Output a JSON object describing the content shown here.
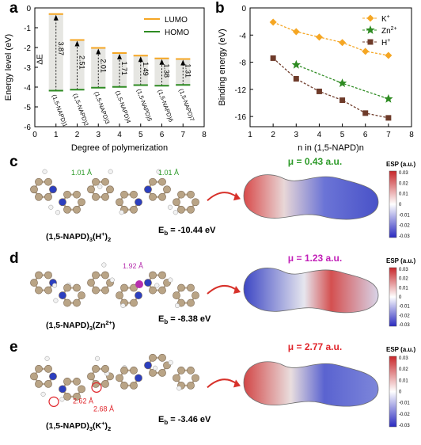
{
  "panels": {
    "a": "a",
    "b": "b",
    "c": "c",
    "d": "d",
    "e": "e"
  },
  "chart_data": [
    {
      "type": "bar",
      "panel": "a",
      "xlabel": "Degree of polymerization",
      "ylabel": "Energy level (eV)",
      "xlim": [
        0,
        8
      ],
      "ylim": [
        -6,
        0
      ],
      "xticks": [
        "0",
        "1",
        "2",
        "3",
        "4",
        "5",
        "6",
        "7",
        "8"
      ],
      "yticks": [
        "0",
        "-1",
        "-2",
        "-3",
        "-4",
        "-5",
        "-6"
      ],
      "categories": [
        "1",
        "2",
        "3",
        "4",
        "5",
        "6",
        "7"
      ],
      "series": [
        {
          "name": "LUMO",
          "color": "#f5a623",
          "values": [
            -0.31,
            -1.62,
            -2.02,
            -2.28,
            -2.41,
            -2.55,
            -2.58
          ]
        },
        {
          "name": "HOMO",
          "color": "#2e8b22",
          "values": [
            -4.18,
            -4.13,
            -4.03,
            -3.99,
            -3.9,
            -3.93,
            -3.89
          ]
        }
      ],
      "gap_labels": [
        "3.87",
        "2.51",
        "2.01",
        "1.71",
        "1.49",
        "1.38",
        "1.31"
      ],
      "bar_labels": [
        "(1,5-NAPD)1",
        "(1,5-NAPD)2",
        "(1,5-NAPD)3",
        "(1,5-NAPD)4",
        "(1,5-NAPD)5",
        "(1,5-NAPD)6",
        "(1,5-NAPD)7"
      ],
      "delta_label": "ΔE",
      "legend": "top-right"
    },
    {
      "type": "line",
      "panel": "b",
      "xlabel": "n in (1,5-NAPD)n",
      "ylabel": "Binding energy (eV)",
      "xlim": [
        1,
        8
      ],
      "ylim": [
        -17.5,
        0
      ],
      "xticks": [
        "1",
        "2",
        "3",
        "4",
        "5",
        "6",
        "7",
        "8"
      ],
      "yticks": [
        "0",
        "-4",
        "-8",
        "-12",
        "-16"
      ],
      "series": [
        {
          "name": "K+",
          "color": "#f5a623",
          "marker": "diamond",
          "x": [
            2,
            3,
            4,
            5,
            6,
            7
          ],
          "y": [
            -2.1,
            -3.5,
            -4.3,
            -5.1,
            -6.4,
            -7.0
          ]
        },
        {
          "name": "Zn2+",
          "color": "#2e8b22",
          "marker": "star",
          "x": [
            3,
            5,
            7
          ],
          "y": [
            -8.38,
            -11.1,
            -13.4
          ]
        },
        {
          "name": "H+",
          "color": "#6e3b2a",
          "marker": "square",
          "x": [
            2,
            3,
            4,
            5,
            6,
            7
          ],
          "y": [
            -7.4,
            -10.44,
            -12.3,
            -13.6,
            -15.5,
            -16.2
          ]
        }
      ],
      "legend": "top-right"
    }
  ],
  "structures": [
    {
      "name_main": "(1,5-NAPD)",
      "name_sub1": "3",
      "name_ion": "(H",
      "name_sup": "+",
      "name_close": ")",
      "name_sub2": "2",
      "eb_label": "E",
      "eb_sub": "b",
      "eb_value": " = -10.44 eV",
      "bond_labels": [
        "1.01 Å",
        "1.01 Å"
      ],
      "mu": "μ = 0.43 a.u.",
      "mu_color": "#2e9b2a",
      "esp_title": "ESP (a.u.)",
      "esp_ticks": [
        "0.03",
        "0.02",
        "0.01",
        "0",
        "-0.01",
        "-0.02",
        "-0.03"
      ]
    },
    {
      "name_main": "(1,5-NAPD)",
      "name_sub1": "3",
      "name_ion": "(Zn",
      "name_sup": "2+",
      "name_close": ")",
      "name_sub2": "",
      "eb_label": "E",
      "eb_sub": "b",
      "eb_value": " = -8.38 eV",
      "bond_labels": [
        "1.92 Å"
      ],
      "mu": "μ = 1.23 a.u.",
      "mu_color": "#c21fb8",
      "esp_title": "ESP (a.u.)",
      "esp_ticks": [
        "0.03",
        "0.02",
        "0.01",
        "0",
        "-0.01",
        "-0.02",
        "-0.03"
      ]
    },
    {
      "name_main": "(1,5-NAPD)",
      "name_sub1": "3",
      "name_ion": "(K",
      "name_sup": "+",
      "name_close": ")",
      "name_sub2": "2",
      "eb_label": "E",
      "eb_sub": "b",
      "eb_value": " = -3.46 eV",
      "bond_labels": [
        "2.62 Å",
        "2.68 Å"
      ],
      "mu": "μ = 2.77 a.u.",
      "mu_color": "#e0242a",
      "esp_title": "ESP (a.u.)",
      "esp_ticks": [
        "0.03",
        "0.02",
        "0.01",
        "0",
        "-0.01",
        "-0.02",
        "-0.03"
      ]
    }
  ]
}
